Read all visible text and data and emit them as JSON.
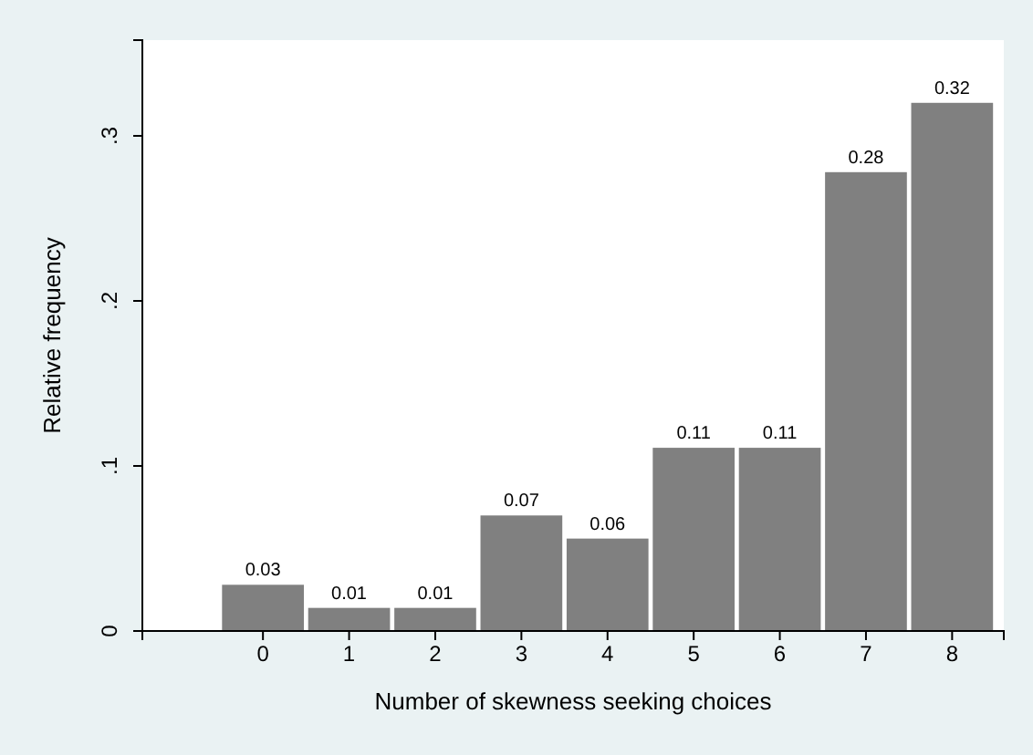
{
  "chart_data": {
    "type": "bar",
    "xlabel": "Number of skewness seeking choices",
    "ylabel": "Relative frequency",
    "x": [
      0,
      1,
      2,
      3,
      4,
      5,
      6,
      7,
      8
    ],
    "values": [
      0.028,
      0.014,
      0.014,
      0.07,
      0.056,
      0.111,
      0.111,
      0.278,
      0.32
    ],
    "value_labels": [
      "0.03",
      "0.01",
      "0.01",
      "0.07",
      "0.06",
      "0.11",
      "0.11",
      "0.28",
      "0.32"
    ],
    "color": "#808080",
    "xlim": [
      -1.4,
      8.6
    ],
    "xticks": [
      0,
      1,
      2,
      3,
      4,
      5,
      6,
      7,
      8
    ],
    "ylim": [
      0,
      0.358
    ],
    "yticks": [
      0,
      {
        "value": 0.1,
        "label": ".1"
      },
      {
        "value": 0.2,
        "label": ".2"
      },
      {
        "value": 0.3,
        "label": ".3"
      }
    ],
    "grid": false
  }
}
